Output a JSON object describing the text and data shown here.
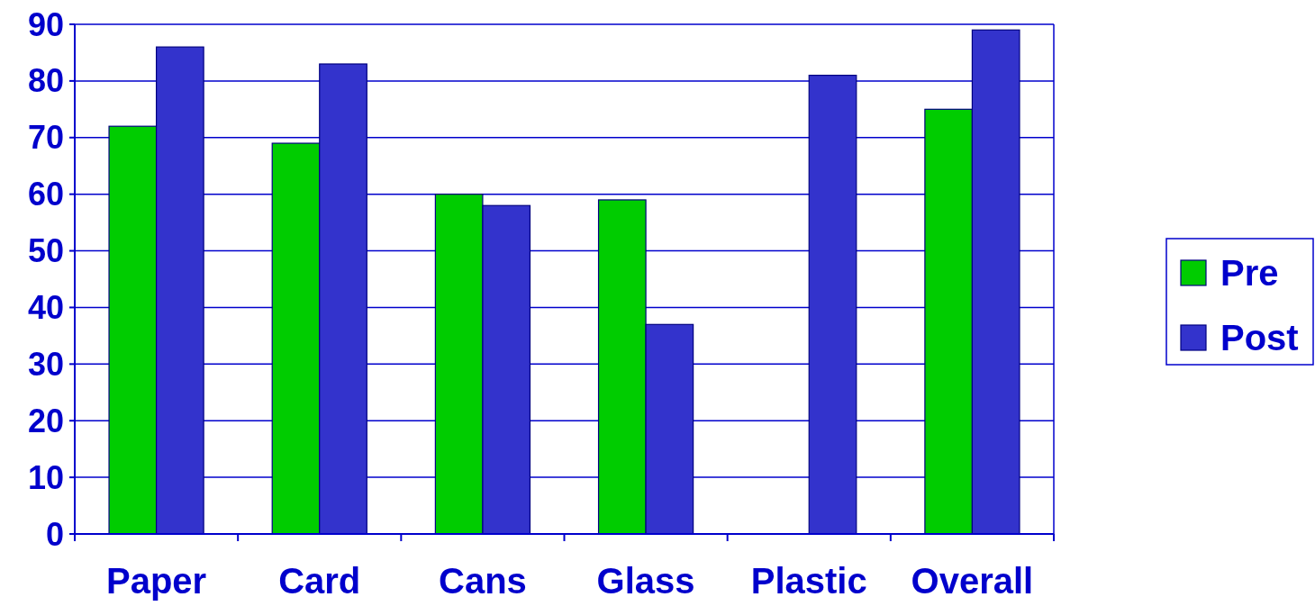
{
  "chart_data": {
    "type": "bar",
    "categories": [
      "Paper",
      "Card",
      "Cans",
      "Glass",
      "Plastic",
      "Overall"
    ],
    "series": [
      {
        "name": "Pre",
        "color": "#00cc00",
        "values": [
          72,
          69,
          60,
          59,
          null,
          75
        ]
      },
      {
        "name": "Post",
        "color": "#3333cc",
        "values": [
          86,
          83,
          58,
          37,
          81,
          89
        ]
      }
    ],
    "ylim": [
      0,
      90
    ],
    "yticks": [
      0,
      10,
      20,
      30,
      40,
      50,
      60,
      70,
      80,
      90
    ],
    "grid": "y",
    "legend": "right"
  }
}
